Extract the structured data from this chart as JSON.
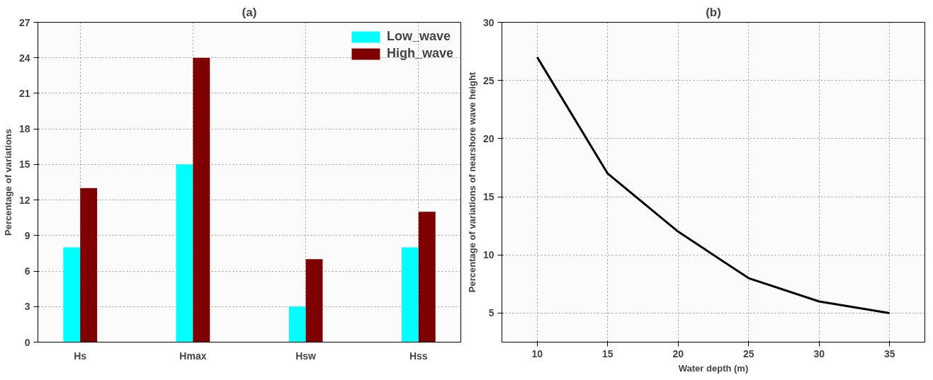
{
  "chart_data": [
    {
      "type": "bar",
      "title": "(a)",
      "ylabel": "Percentage of variations",
      "categories": [
        "Hs",
        "Hmax",
        "Hsw",
        "Hss"
      ],
      "series": [
        {
          "name": "Low_wave",
          "color": "#00ffff",
          "values": [
            8,
            15,
            3,
            8
          ]
        },
        {
          "name": "High_wave",
          "color": "#7f0000",
          "values": [
            13,
            24,
            7,
            11
          ]
        }
      ],
      "ylim": [
        0,
        27
      ],
      "yticks": [
        0,
        3,
        6,
        9,
        12,
        15,
        18,
        21,
        24,
        27
      ],
      "grid": true,
      "legend": "top right"
    },
    {
      "type": "line",
      "title": "(b)",
      "xlabel": "Water depth (m)",
      "ylabel": "Percentage of variations of nearshore wave height",
      "x": [
        10,
        15,
        20,
        25,
        30,
        35
      ],
      "series": [
        {
          "color": "#000000",
          "values": [
            27,
            17,
            12,
            8,
            6,
            5
          ]
        }
      ],
      "xlim": [
        7.5,
        37.5
      ],
      "xticks": [
        10,
        15,
        20,
        25,
        30,
        35
      ],
      "ylim": [
        2.5,
        30
      ],
      "yticks": [
        5,
        10,
        15,
        20,
        25,
        30
      ],
      "grid": true,
      "legend": false,
      "marker": "none",
      "line_style": "solid"
    }
  ]
}
